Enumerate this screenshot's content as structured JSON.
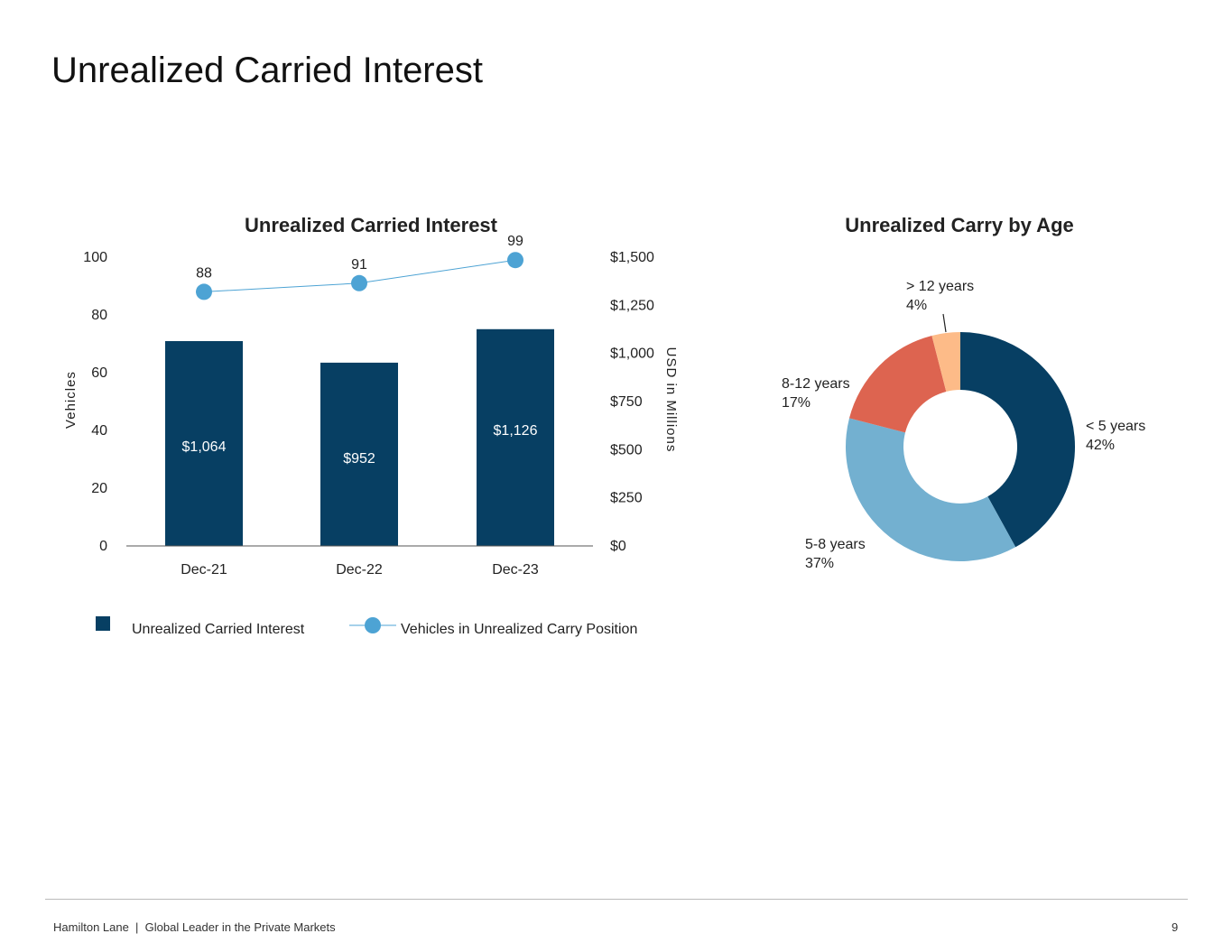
{
  "page": {
    "title": "Unrealized Carried Interest",
    "footer": "Hamilton Lane  |  Global Leader in the Private Markets",
    "page_number": "9"
  },
  "chart_data": [
    {
      "type": "bar",
      "title": "Unrealized Carried Interest",
      "categories": [
        "Dec-21",
        "Dec-22",
        "Dec-23"
      ],
      "series": [
        {
          "name": "Unrealized Carried Interest",
          "type": "bar",
          "axis": "right",
          "values": [
            1064,
            952,
            1126
          ],
          "labels": [
            "$1,064",
            "$952",
            "$1,126"
          ],
          "color": "#073f63"
        },
        {
          "name": "Vehicles in Unrealized Carry Position",
          "type": "line",
          "axis": "left",
          "values": [
            88,
            91,
            99
          ],
          "labels": [
            "88",
            "91",
            "99"
          ],
          "color": "#4da3d4"
        }
      ],
      "ylabel": "Vehicles",
      "ylim": [
        0,
        100
      ],
      "yticks": [
        "0",
        "20",
        "40",
        "60",
        "80",
        "100"
      ],
      "y2label": "USD in Millions",
      "y2lim": [
        0,
        1500
      ],
      "y2ticks": [
        "$0",
        "$250",
        "$500",
        "$750",
        "$1,000",
        "$1,250",
        "$1,500"
      ],
      "legend": "bottom"
    },
    {
      "type": "pie",
      "title": "Unrealized Carry by Age",
      "donut": true,
      "slices": [
        {
          "label": "< 5 years",
          "pct_label": "42%",
          "value": 42,
          "color": "#073f63"
        },
        {
          "label": "5-8 years",
          "pct_label": "37%",
          "value": 37,
          "color": "#73b0d0"
        },
        {
          "label": "8-12 years",
          "pct_label": "17%",
          "value": 17,
          "color": "#dd6450"
        },
        {
          "label": "> 12 years",
          "pct_label": "4%",
          "value": 4,
          "color": "#fdbb88"
        }
      ]
    }
  ]
}
